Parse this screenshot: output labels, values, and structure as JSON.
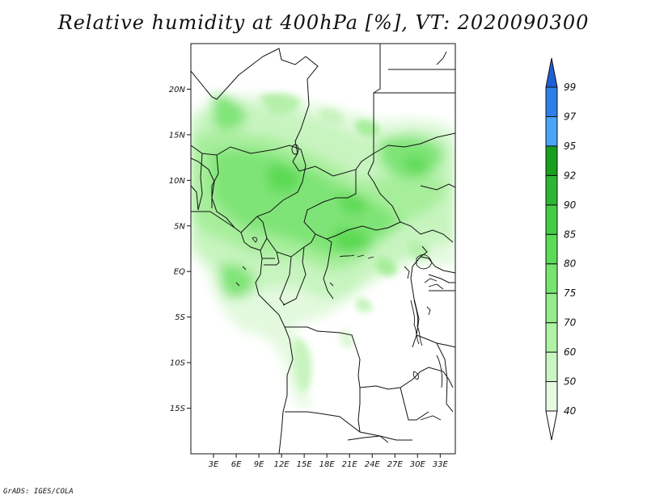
{
  "title": "Relative humidity at 400hPa [%], VT: 2020090300",
  "credit": "GrADS: IGES/COLA",
  "map": {
    "lon_range": [
      0,
      35
    ],
    "lat_range": [
      -20,
      25
    ],
    "lat_ticks": [
      "20N",
      "15N",
      "10N",
      "5N",
      "EQ",
      "5S",
      "10S",
      "15S"
    ],
    "lon_ticks": [
      "3E",
      "6E",
      "9E",
      "12E",
      "15E",
      "18E",
      "21E",
      "24E",
      "27E",
      "30E",
      "33E"
    ],
    "lat_tick_values": [
      20,
      15,
      10,
      5,
      0,
      -5,
      -10,
      -15
    ],
    "lon_tick_values": [
      3,
      6,
      9,
      12,
      15,
      18,
      21,
      24,
      27,
      30,
      33
    ]
  },
  "colorbar": {
    "levels": [
      "40",
      "50",
      "60",
      "70",
      "75",
      "80",
      "85",
      "90",
      "92",
      "95",
      "97",
      "99"
    ],
    "colors": [
      "#ffffff",
      "#e6fbe1",
      "#c9f6c2",
      "#b0f2a6",
      "#94ec8a",
      "#78e470",
      "#5bdc57",
      "#42cd45",
      "#2bb734",
      "#16a01e",
      "#4aa3f5",
      "#2f7fe8",
      "#1f5fd6"
    ]
  }
}
